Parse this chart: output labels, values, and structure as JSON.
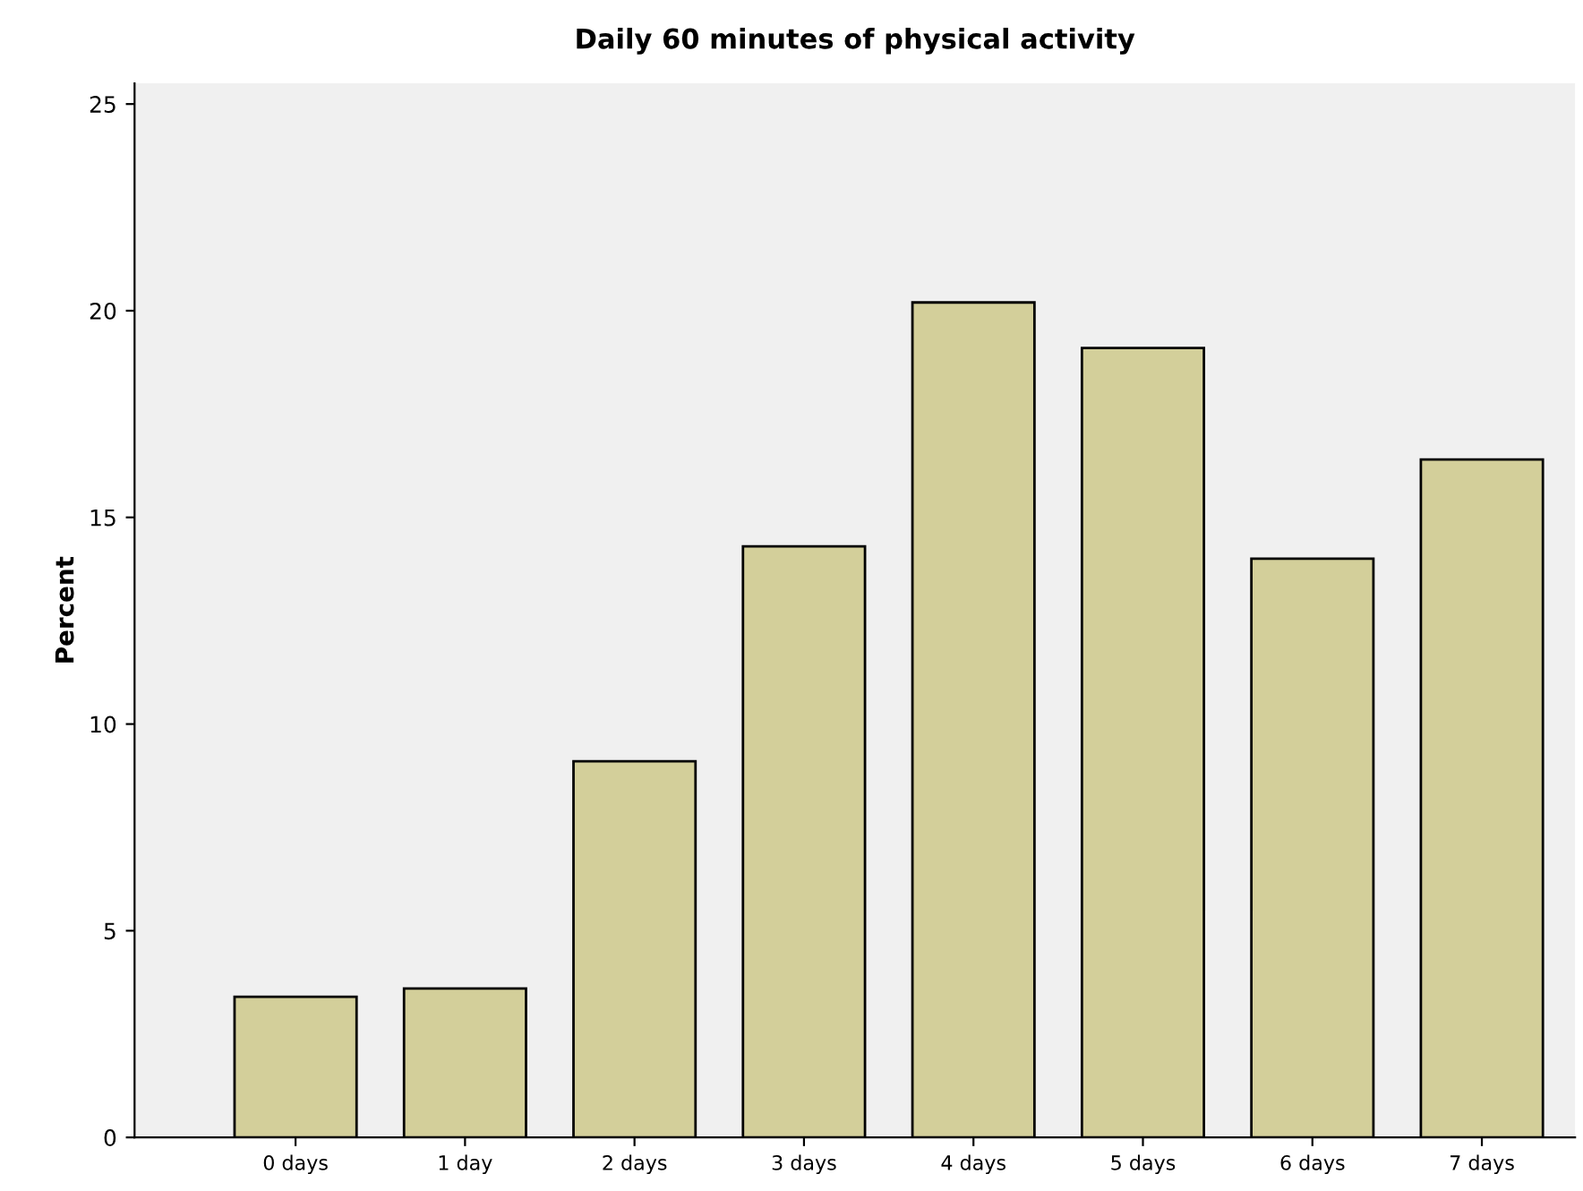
{
  "chart_data": {
    "type": "bar",
    "title": "Daily 60 minutes of physical activity",
    "ylabel": "Percent",
    "categories": [
      "0 days",
      "1 day",
      "2 days",
      "3 days",
      "4 days",
      "5 days",
      "6 days",
      "7 days"
    ],
    "values": [
      3.4,
      3.6,
      9.1,
      14.3,
      20.2,
      19.1,
      14.0,
      16.4
    ],
    "color": "#d3cf9a",
    "ylim": [
      0,
      25.5
    ],
    "yticks": [
      0,
      5,
      10,
      15,
      20,
      25
    ],
    "grid": false
  }
}
